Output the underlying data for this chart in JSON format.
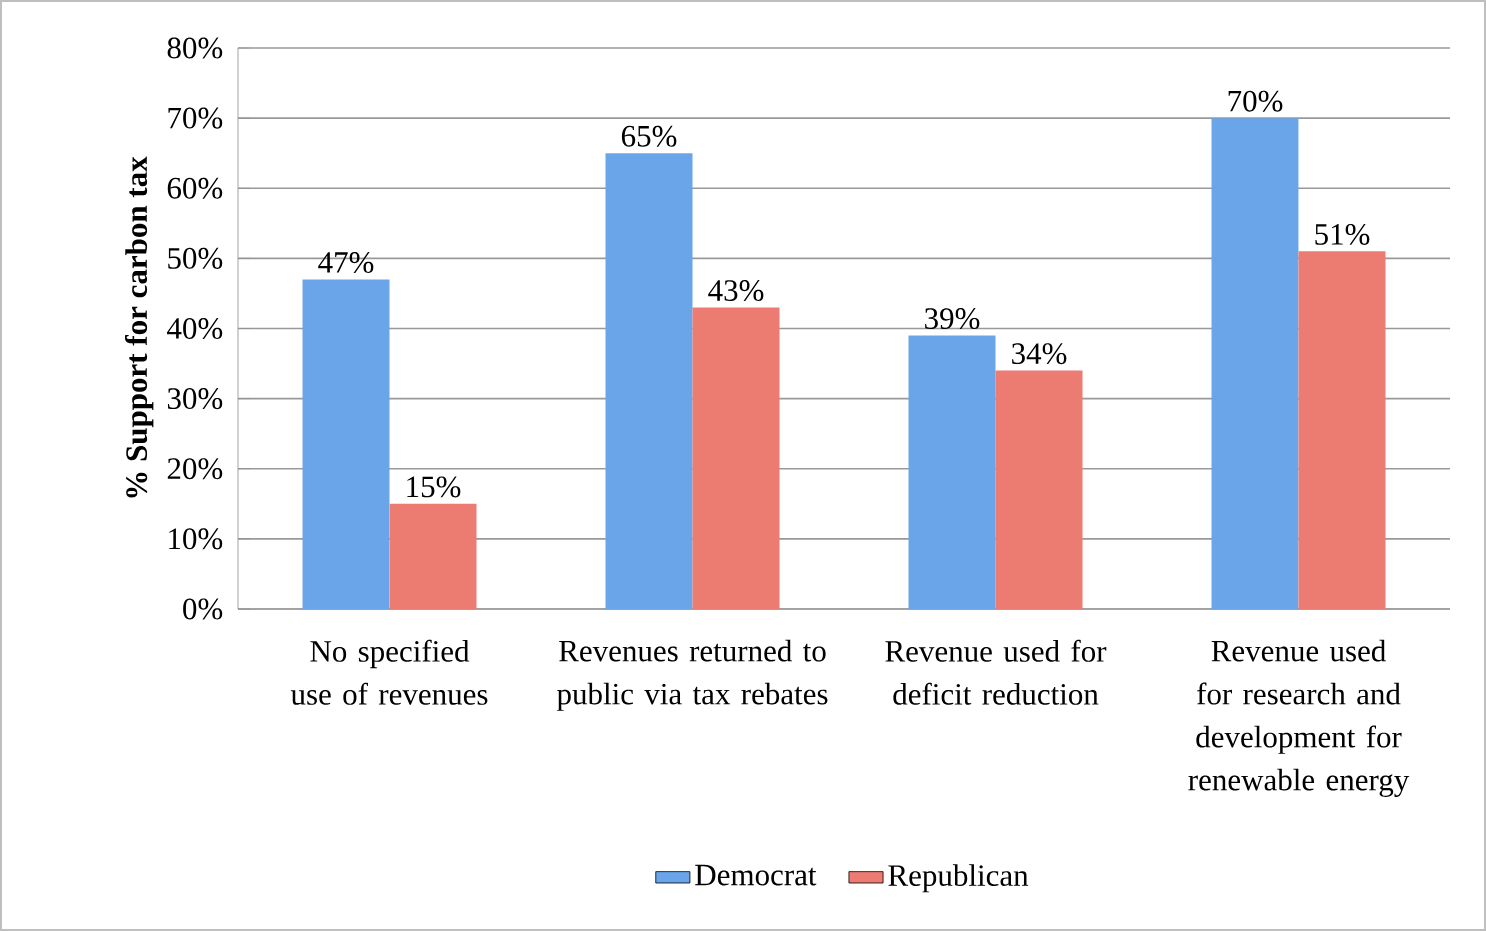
{
  "chart_data": {
    "type": "bar",
    "ylabel": "% Support for carbon tax",
    "categories": [
      "No specified use of revenues",
      "Revenues returned to public via tax rebates",
      "Revenue used for deficit reduction",
      "Revenue used for research and development for renewable energy"
    ],
    "series": [
      {
        "name": "Democrat",
        "color": "#6aa5ea",
        "values": [
          47,
          65,
          39,
          70
        ],
        "value_labels": [
          "47%",
          "65%",
          "39%",
          "70%"
        ]
      },
      {
        "name": "Republican",
        "color": "#ec7b72",
        "values": [
          15,
          43,
          34,
          51
        ],
        "value_labels": [
          "15%",
          "43%",
          "34%",
          "51%"
        ]
      }
    ],
    "ylim": [
      0,
      80
    ],
    "yticks": [
      {
        "value": 0,
        "label": "0%"
      },
      {
        "value": 10,
        "label": "10%"
      },
      {
        "value": 20,
        "label": "20%"
      },
      {
        "value": 30,
        "label": "30%"
      },
      {
        "value": 40,
        "label": "40%"
      },
      {
        "value": 50,
        "label": "50%"
      },
      {
        "value": 60,
        "label": "60%"
      },
      {
        "value": 70,
        "label": "70%"
      },
      {
        "value": 80,
        "label": "80%"
      }
    ],
    "grid": "y",
    "legend": "bottom"
  }
}
